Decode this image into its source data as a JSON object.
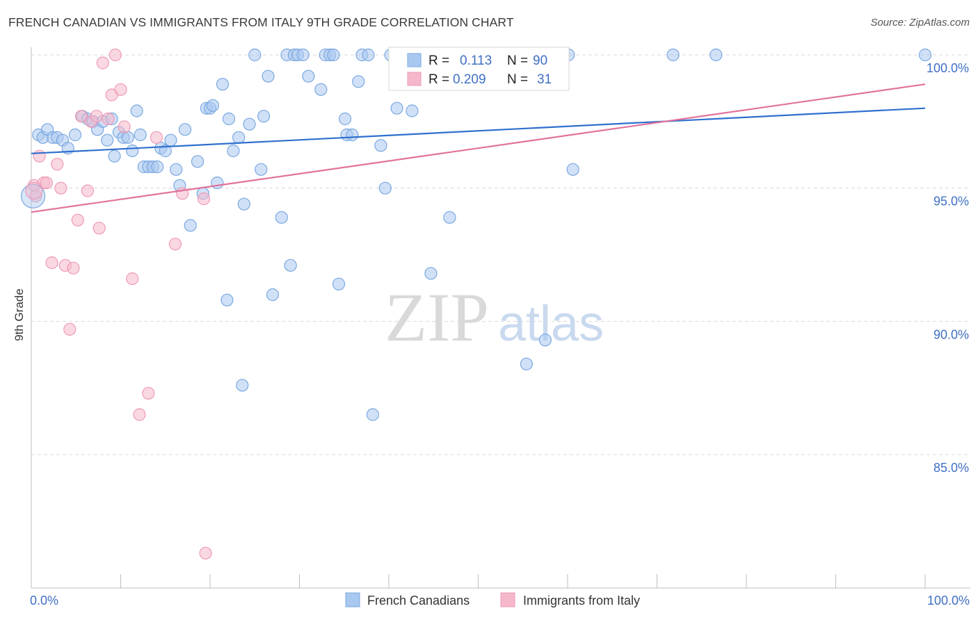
{
  "header": {
    "title": "FRENCH CANADIAN VS IMMIGRANTS FROM ITALY 9TH GRADE CORRELATION CHART",
    "source": "Source: ZipAtlas.com"
  },
  "watermark": {
    "zip": "ZIP",
    "atlas": "atlas"
  },
  "colors": {
    "blue_fill": "#a9c8f0",
    "blue_stroke": "#7aa7e0",
    "blue_line": "#2f6fce",
    "pink_fill": "#f5b8cb",
    "pink_stroke": "#ee9ab5",
    "pink_line": "#e0729a",
    "tick_text": "#3f6fc4",
    "grid": "#d8d8d8"
  },
  "stats_box": {
    "rows": [
      {
        "r_label": "R =",
        "r_value": "0.113",
        "n_label": "N =",
        "n_value": "90"
      },
      {
        "r_label": "R =",
        "r_value": "0.209",
        "n_label": "N =",
        "n_value": "31"
      }
    ]
  },
  "chart_data": {
    "type": "scatter",
    "ylabel": "9th Grade",
    "xlim": [
      0,
      100
    ],
    "ylim": [
      80.4,
      100.6
    ],
    "y_ticks": [
      {
        "value": 100,
        "label": "100.0%"
      },
      {
        "value": 95,
        "label": "95.0%"
      },
      {
        "value": 90,
        "label": "90.0%"
      },
      {
        "value": 85,
        "label": "85.0%"
      }
    ],
    "x_tick_labels": [
      {
        "value": 0,
        "label": "0.0%"
      },
      {
        "value": 100,
        "label": "100.0%"
      }
    ],
    "x_minor_ticks": [
      0,
      10,
      20,
      30,
      40,
      50,
      60,
      70,
      80,
      90,
      100
    ],
    "grid": true,
    "legend": {
      "placement": "bottom-center",
      "items": [
        "French Canadians",
        "Immigrants from Italy"
      ]
    },
    "series": [
      {
        "name": "French Canadians",
        "color": "#a9c8f0",
        "trend": {
          "x": [
            0,
            100
          ],
          "y": [
            96.3,
            98.0
          ]
        },
        "points": [
          [
            0.8,
            97.0
          ],
          [
            1.3,
            96.9
          ],
          [
            1.8,
            97.2
          ],
          [
            2.4,
            96.9
          ],
          [
            2.9,
            96.9
          ],
          [
            3.5,
            96.8
          ],
          [
            4.1,
            96.5
          ],
          [
            4.9,
            97.0
          ],
          [
            5.7,
            97.7
          ],
          [
            6.3,
            97.6
          ],
          [
            6.9,
            97.5
          ],
          [
            7.4,
            97.2
          ],
          [
            8.0,
            97.5
          ],
          [
            8.5,
            96.8
          ],
          [
            9.0,
            97.6
          ],
          [
            9.3,
            96.2
          ],
          [
            9.8,
            97.1
          ],
          [
            10.3,
            96.9
          ],
          [
            10.8,
            96.9
          ],
          [
            11.3,
            96.4
          ],
          [
            11.8,
            97.9
          ],
          [
            12.2,
            97.0
          ],
          [
            12.6,
            95.8
          ],
          [
            13.1,
            95.8
          ],
          [
            13.6,
            95.8
          ],
          [
            14.1,
            95.8
          ],
          [
            14.5,
            96.5
          ],
          [
            15.0,
            96.4
          ],
          [
            15.6,
            96.8
          ],
          [
            16.2,
            95.7
          ],
          [
            16.6,
            95.1
          ],
          [
            17.2,
            97.2
          ],
          [
            17.8,
            93.6
          ],
          [
            18.6,
            96.0
          ],
          [
            19.2,
            94.8
          ],
          [
            19.6,
            98.0
          ],
          [
            20.0,
            98.0
          ],
          [
            20.3,
            98.1
          ],
          [
            20.8,
            95.2
          ],
          [
            21.4,
            98.9
          ],
          [
            21.9,
            90.8
          ],
          [
            22.1,
            97.6
          ],
          [
            22.6,
            96.4
          ],
          [
            23.2,
            96.9
          ],
          [
            23.6,
            87.6
          ],
          [
            23.8,
            94.4
          ],
          [
            24.4,
            97.4
          ],
          [
            25.0,
            100.0
          ],
          [
            25.7,
            95.7
          ],
          [
            26.0,
            97.7
          ],
          [
            26.5,
            99.2
          ],
          [
            27.0,
            91.0
          ],
          [
            28.0,
            93.9
          ],
          [
            28.6,
            100.0
          ],
          [
            29.0,
            92.1
          ],
          [
            29.4,
            100.0
          ],
          [
            29.8,
            100.0
          ],
          [
            30.4,
            100.0
          ],
          [
            31.0,
            99.2
          ],
          [
            32.4,
            98.7
          ],
          [
            32.9,
            100.0
          ],
          [
            33.4,
            100.0
          ],
          [
            33.8,
            100.0
          ],
          [
            34.4,
            91.4
          ],
          [
            35.1,
            97.6
          ],
          [
            35.3,
            97.0
          ],
          [
            35.9,
            97.0
          ],
          [
            36.6,
            99.0
          ],
          [
            37.0,
            100.0
          ],
          [
            37.7,
            100.0
          ],
          [
            38.2,
            86.5
          ],
          [
            39.1,
            96.6
          ],
          [
            39.6,
            95.0
          ],
          [
            40.2,
            100.0
          ],
          [
            40.9,
            98.0
          ],
          [
            42.6,
            97.9
          ],
          [
            44.7,
            91.8
          ],
          [
            45.7,
            100.0
          ],
          [
            46.8,
            93.9
          ],
          [
            47.5,
            100.0
          ],
          [
            50.2,
            100.0
          ],
          [
            55.4,
            88.4
          ],
          [
            56.2,
            100.0
          ],
          [
            57.5,
            89.3
          ],
          [
            58.6,
            100.0
          ],
          [
            60.1,
            100.0
          ],
          [
            60.6,
            95.7
          ],
          [
            71.8,
            100.0
          ],
          [
            76.6,
            100.0
          ],
          [
            100.0,
            100.0
          ]
        ]
      },
      {
        "name": "Immigrants from Italy",
        "color": "#f5b8cb",
        "trend": {
          "x": [
            0,
            100
          ],
          "y": [
            94.1,
            98.9
          ]
        },
        "points": [
          [
            0.3,
            95.1
          ],
          [
            0.5,
            94.7
          ],
          [
            0.9,
            96.2
          ],
          [
            1.4,
            95.2
          ],
          [
            1.7,
            95.2
          ],
          [
            2.3,
            92.2
          ],
          [
            2.9,
            95.9
          ],
          [
            3.3,
            95.0
          ],
          [
            3.8,
            92.1
          ],
          [
            4.3,
            89.7
          ],
          [
            4.7,
            92.0
          ],
          [
            5.2,
            93.8
          ],
          [
            5.6,
            97.7
          ],
          [
            6.3,
            94.9
          ],
          [
            6.7,
            97.5
          ],
          [
            7.3,
            97.7
          ],
          [
            7.6,
            93.5
          ],
          [
            8.0,
            99.7
          ],
          [
            8.6,
            97.6
          ],
          [
            9.0,
            98.5
          ],
          [
            9.4,
            100.0
          ],
          [
            10.0,
            98.7
          ],
          [
            10.4,
            97.3
          ],
          [
            11.3,
            91.6
          ],
          [
            12.1,
            86.5
          ],
          [
            13.1,
            87.3
          ],
          [
            14.0,
            96.9
          ],
          [
            16.1,
            92.9
          ],
          [
            16.9,
            94.8
          ],
          [
            19.3,
            94.6
          ],
          [
            19.5,
            81.3
          ]
        ]
      }
    ]
  }
}
